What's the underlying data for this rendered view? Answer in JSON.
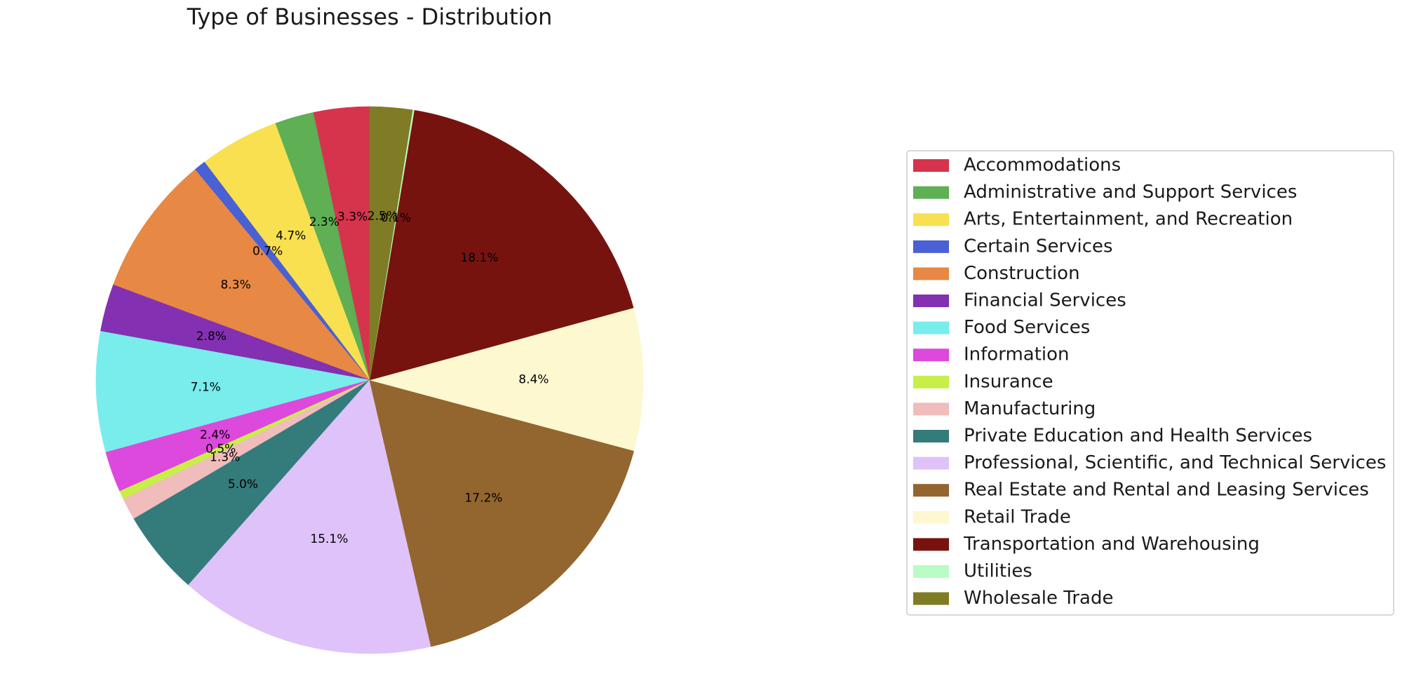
{
  "chart_data": {
    "type": "pie",
    "title": "Type of Businesses - Distribution",
    "start_angle_deg": 90,
    "direction": "counterclockwise",
    "legend_position": "right",
    "categories": [
      "Accommodations",
      "Administrative and Support Services",
      "Arts, Entertainment, and Recreation",
      "Certain Services",
      "Construction",
      "Financial Services",
      "Food Services",
      "Information",
      "Insurance",
      "Manufacturing",
      "Private Education and Health Services",
      "Professional, Scientific, and Technical Services",
      "Real Estate and Rental and Leasing Services",
      "Retail Trade",
      "Transportation and Warehousing",
      "Utilities",
      "Wholesale Trade"
    ],
    "values": [
      3.3,
      2.3,
      4.7,
      0.7,
      8.3,
      2.8,
      7.1,
      2.4,
      0.5,
      1.3,
      5.0,
      15.1,
      17.2,
      8.4,
      18.1,
      0.1,
      2.5
    ],
    "labels": [
      "3.3%",
      "2.3%",
      "4.7%",
      "0.7%",
      "8.3%",
      "2.8%",
      "7.1%",
      "2.4%",
      "0.5%",
      "1.3%",
      "5.0%",
      "15.1%",
      "17.2%",
      "8.4%",
      "18.1%",
      "0.1%",
      "2.5%"
    ],
    "colors": [
      "#d6334d",
      "#5faf55",
      "#f8e050",
      "#4a60d5",
      "#e78844",
      "#8430b2",
      "#79ecec",
      "#dd48dd",
      "#c8ef48",
      "#f0bcbc",
      "#347b7b",
      "#dfc2fa",
      "#93652f",
      "#fdf8d0",
      "#77130f",
      "#b9fcc6",
      "#7f7c25"
    ]
  }
}
